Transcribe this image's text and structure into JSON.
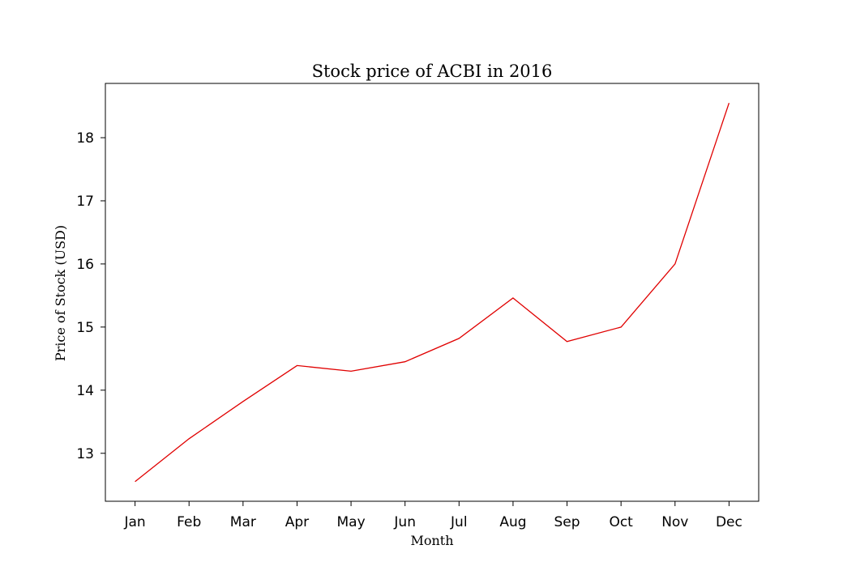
{
  "chart_data": {
    "type": "line",
    "title": "Stock price of ACBI in 2016",
    "xlabel": "Month",
    "ylabel": "Price of Stock (USD)",
    "categories": [
      "Jan",
      "Feb",
      "Mar",
      "Apr",
      "May",
      "Jun",
      "Jul",
      "Aug",
      "Sep",
      "Oct",
      "Nov",
      "Dec"
    ],
    "series": [
      {
        "values": [
          12.55,
          13.23,
          13.82,
          14.39,
          14.3,
          14.45,
          14.82,
          15.46,
          14.77,
          15.0,
          16.0,
          18.55
        ],
        "color": "#e00000"
      }
    ],
    "yticks": [
      13,
      14,
      15,
      16,
      17,
      18
    ],
    "ylim": [
      12.24,
      18.86
    ],
    "grid": false,
    "legend": "none"
  }
}
